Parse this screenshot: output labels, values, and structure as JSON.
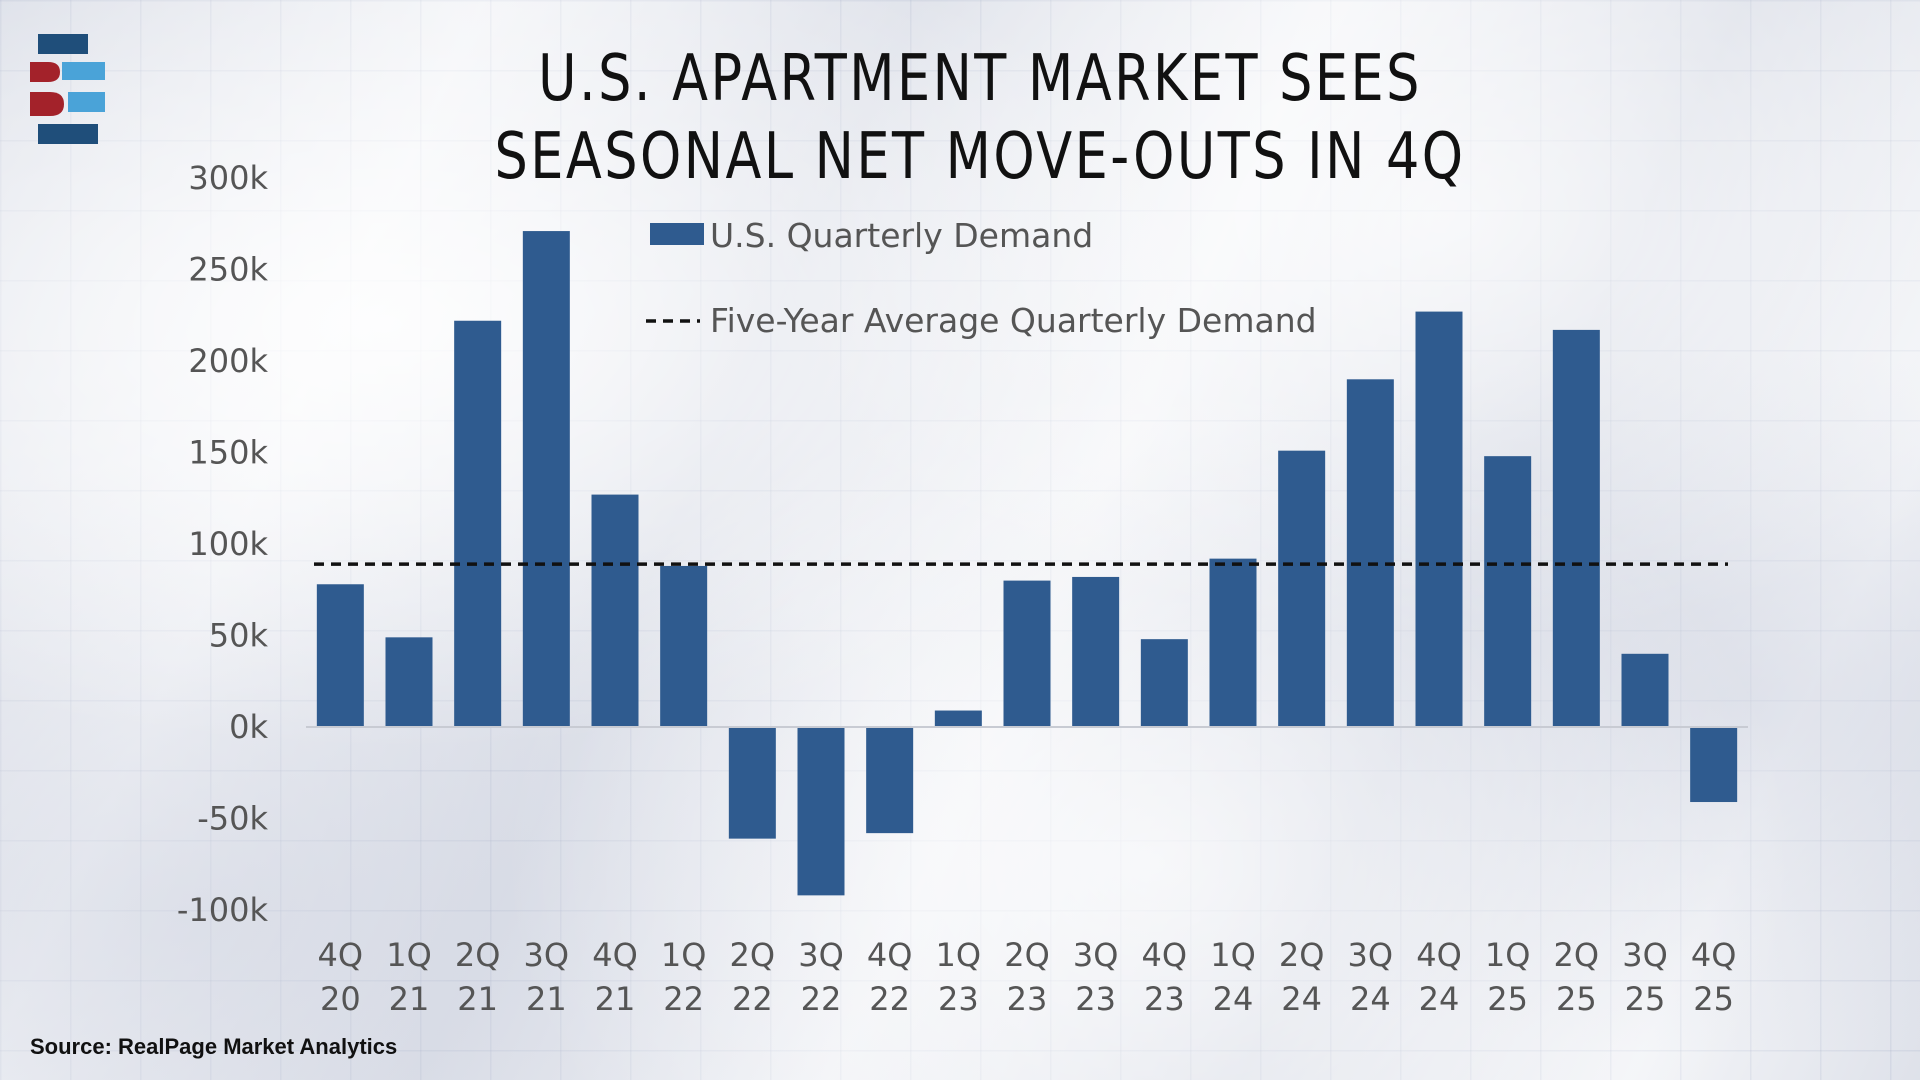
{
  "title_line1": "U.S. APARTMENT MARKET SEES",
  "title_line2": "SEASONAL NET MOVE-OUTS IN 4Q",
  "source": "Source: RealPage Market Analytics",
  "colors": {
    "bar": "#2f5b8f",
    "average_line": "#111111",
    "logo_dark_blue": "#1f4e7a",
    "logo_light_blue": "#4aa3d8",
    "logo_red": "#a3222a"
  },
  "chart_data": {
    "type": "bar",
    "title": "U.S. APARTMENT MARKET SEES SEASONAL NET MOVE-OUTS IN 4Q",
    "xlabel": "",
    "ylabel": "",
    "ylim": [
      -100000,
      300000
    ],
    "yticks": [
      300000,
      250000,
      200000,
      150000,
      100000,
      50000,
      0,
      -50000,
      -100000
    ],
    "ytick_labels": [
      "300k",
      "250k",
      "200k",
      "150k",
      "100k",
      "50k",
      "0k",
      "-50k",
      "-100k"
    ],
    "categories": [
      [
        "4Q",
        "20"
      ],
      [
        "1Q",
        "21"
      ],
      [
        "2Q",
        "21"
      ],
      [
        "3Q",
        "21"
      ],
      [
        "4Q",
        "21"
      ],
      [
        "1Q",
        "22"
      ],
      [
        "2Q",
        "22"
      ],
      [
        "3Q",
        "22"
      ],
      [
        "4Q",
        "22"
      ],
      [
        "1Q",
        "23"
      ],
      [
        "2Q",
        "23"
      ],
      [
        "3Q",
        "23"
      ],
      [
        "4Q",
        "23"
      ],
      [
        "1Q",
        "24"
      ],
      [
        "2Q",
        "24"
      ],
      [
        "3Q",
        "24"
      ],
      [
        "4Q",
        "24"
      ],
      [
        "1Q",
        "25"
      ],
      [
        "2Q",
        "25"
      ],
      [
        "3Q",
        "25"
      ],
      [
        "4Q",
        "25"
      ]
    ],
    "series": [
      {
        "name": "U.S. Quarterly Demand",
        "values": [
          78000,
          49000,
          222000,
          271000,
          127000,
          88000,
          -61000,
          -92000,
          -58000,
          9000,
          80000,
          82000,
          48000,
          92000,
          151000,
          190000,
          227000,
          148000,
          217000,
          40000,
          -41000
        ]
      }
    ],
    "reference_line": {
      "name": "Five-Year Average Quarterly Demand",
      "value": 89000,
      "style": "dashed"
    },
    "legend": [
      {
        "label": "U.S. Quarterly Demand",
        "marker": "bar"
      },
      {
        "label": "Five-Year Average Quarterly Demand",
        "marker": "dashed-line"
      }
    ],
    "legend_position": "top-center",
    "grid": false
  }
}
